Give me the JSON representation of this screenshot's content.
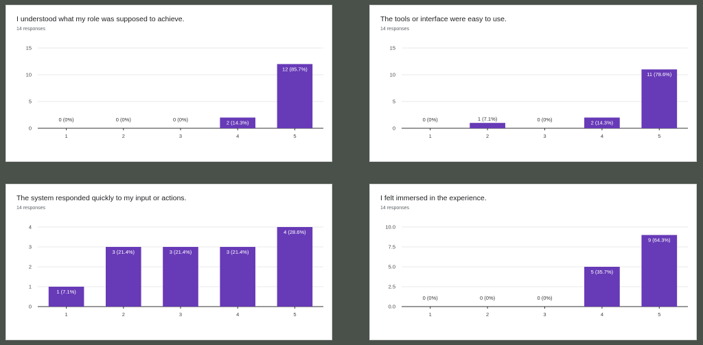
{
  "colors": {
    "bar": "#673ab7",
    "grid": "#e8e8e8",
    "axis": "#333333",
    "background": "#4a514b"
  },
  "chart_data": [
    {
      "type": "bar",
      "title": "I understood what my role was supposed to achieve.",
      "subtitle": "14 responses",
      "categories": [
        "1",
        "2",
        "3",
        "4",
        "5"
      ],
      "values": [
        0,
        0,
        0,
        2,
        12
      ],
      "data_labels": [
        "0 (0%)",
        "0 (0%)",
        "0 (0%)",
        "2 (14.3%)",
        "12 (85.7%)"
      ],
      "ylim": [
        0,
        15
      ],
      "yticks": [
        "0",
        "5",
        "10",
        "15"
      ],
      "grid": true
    },
    {
      "type": "bar",
      "title": "The tools or interface were easy to use.",
      "subtitle": "14 responses",
      "categories": [
        "1",
        "2",
        "3",
        "4",
        "5"
      ],
      "values": [
        0,
        1,
        0,
        2,
        11
      ],
      "data_labels": [
        "0 (0%)",
        "1 (7.1%)",
        "0 (0%)",
        "2 (14.3%)",
        "11 (78.6%)"
      ],
      "ylim": [
        0,
        15
      ],
      "yticks": [
        "0",
        "5",
        "10",
        "15"
      ],
      "grid": true
    },
    {
      "type": "bar",
      "title": "The system responded quickly to my input or actions.",
      "subtitle": "14 responses",
      "categories": [
        "1",
        "2",
        "3",
        "4",
        "5"
      ],
      "values": [
        1,
        3,
        3,
        3,
        4
      ],
      "data_labels": [
        "1 (7.1%)",
        "3 (21.4%)",
        "3 (21.4%)",
        "3 (21.4%)",
        "4 (28.6%)"
      ],
      "ylim": [
        0,
        4
      ],
      "yticks": [
        "0",
        "1",
        "2",
        "3",
        "4"
      ],
      "grid": true
    },
    {
      "type": "bar",
      "title": "I felt immersed in the experience.",
      "subtitle": "14 responses",
      "categories": [
        "1",
        "2",
        "3",
        "4",
        "5"
      ],
      "values": [
        0,
        0,
        0,
        5,
        9
      ],
      "data_labels": [
        "0 (0%)",
        "0 (0%)",
        "0 (0%)",
        "5 (35.7%)",
        "9 (64.3%)"
      ],
      "ylim": [
        0,
        10
      ],
      "yticks": [
        "0.0",
        "2.5",
        "5.0",
        "7.5",
        "10.0"
      ],
      "grid": true
    }
  ]
}
